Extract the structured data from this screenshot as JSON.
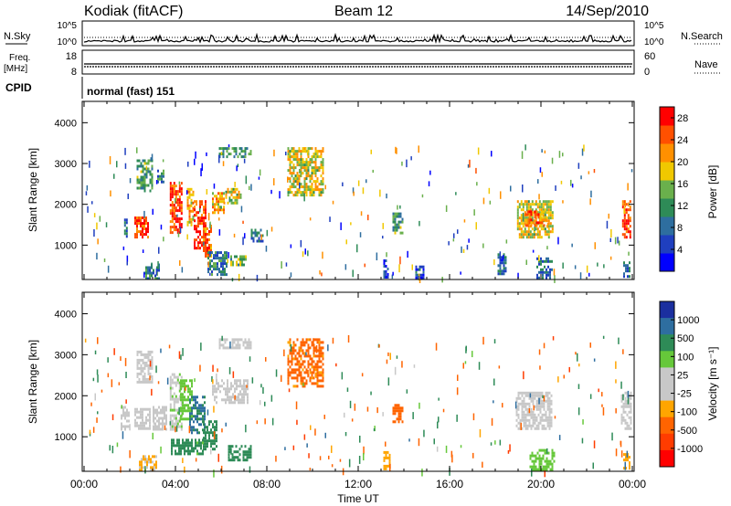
{
  "header": {
    "station": "Kodiak (fitACF)",
    "beam": "Beam 12",
    "date": "14/Sep/2010"
  },
  "params": {
    "nsky_label": "N.Sky",
    "nsearch_label": "N.Search",
    "nsky_ticks": [
      "10^5",
      "10^0"
    ],
    "nsearch_ticks": [
      "10^5",
      "10^0"
    ],
    "freq_label": "Freq.",
    "freq_unit": "[MHz]",
    "freq_ticks": [
      "18",
      "8"
    ],
    "nave_label": "Nave",
    "nave_ticks": [
      "60",
      "0"
    ],
    "cpid_label": "CPID",
    "cpid_text": "normal (fast) 151"
  },
  "colors": {
    "power": [
      "#0000ff",
      "#1f3fbf",
      "#2e6e9f",
      "#2e8b57",
      "#6ab04c",
      "#f0c800",
      "#ff9000",
      "#ff5000",
      "#ff0000"
    ],
    "velocity": [
      "#1b2f9f",
      "#2e6ea0",
      "#2e8b57",
      "#66c83a",
      "#c8c8c8",
      "#c8c8c8",
      "#ffa500",
      "#ff6400",
      "#ff3c00",
      "#ff0000"
    ]
  },
  "chart_data": [
    {
      "type": "heatmap",
      "name": "power",
      "ylabel": "Slant Range [km]",
      "yticks": [
        "1000",
        "2000",
        "3000",
        "4000"
      ],
      "ylim": [
        180,
        4500
      ],
      "colorbar_label": "Power [dB]",
      "colorbar_ticks": [
        "4",
        "8",
        "12",
        "16",
        "20",
        "24",
        "28"
      ],
      "colorbar_range": [
        0,
        30
      ],
      "patches": [
        {
          "t": [
            1.75,
            1.85
          ],
          "r": [
            1200,
            1650
          ],
          "v": 8
        },
        {
          "t": [
            2.2,
            2.8
          ],
          "r": [
            1200,
            1700
          ],
          "v": 26
        },
        {
          "t": [
            2.3,
            3.0
          ],
          "r": [
            2300,
            3100
          ],
          "v": 12
        },
        {
          "t": [
            2.6,
            3.3
          ],
          "r": [
            200,
            550
          ],
          "v": 10
        },
        {
          "t": [
            3.2,
            3.5
          ],
          "r": [
            2550,
            2850
          ],
          "v": 10
        },
        {
          "t": [
            3.75,
            4.25
          ],
          "r": [
            1300,
            2550
          ],
          "v": 26
        },
        {
          "t": [
            4.5,
            4.8
          ],
          "r": [
            1500,
            2400
          ],
          "v": 20
        },
        {
          "t": [
            4.8,
            5.3
          ],
          "r": [
            900,
            2100
          ],
          "v": 27
        },
        {
          "t": [
            5.2,
            5.6
          ],
          "r": [
            700,
            1500
          ],
          "v": 24
        },
        {
          "t": [
            5.6,
            6.1
          ],
          "r": [
            1800,
            2300
          ],
          "v": 20
        },
        {
          "t": [
            6.1,
            6.9
          ],
          "r": [
            2000,
            2400
          ],
          "v": 18
        },
        {
          "t": [
            5.4,
            6.2
          ],
          "r": [
            300,
            850
          ],
          "v": 10
        },
        {
          "t": [
            6.4,
            7.2
          ],
          "r": [
            500,
            750
          ],
          "v": 14
        },
        {
          "t": [
            5.9,
            7.3
          ],
          "r": [
            3150,
            3400
          ],
          "v": 12
        },
        {
          "t": [
            7.3,
            7.8
          ],
          "r": [
            1100,
            1400
          ],
          "v": 8
        },
        {
          "t": [
            8.9,
            10.5
          ],
          "r": [
            2200,
            3400
          ],
          "v": 18
        },
        {
          "t": [
            13.1,
            13.3
          ],
          "r": [
            200,
            650
          ],
          "v": 6
        },
        {
          "t": [
            13.5,
            13.9
          ],
          "r": [
            1300,
            1800
          ],
          "v": 12
        },
        {
          "t": [
            14.5,
            14.9
          ],
          "r": [
            200,
            500
          ],
          "v": 6
        },
        {
          "t": [
            18.1,
            18.5
          ],
          "r": [
            300,
            800
          ],
          "v": 8
        },
        {
          "t": [
            18.95,
            20.5
          ],
          "r": [
            1200,
            2100
          ],
          "v": 18
        },
        {
          "t": [
            19.3,
            20.2
          ],
          "r": [
            1450,
            1850
          ],
          "v": 24
        },
        {
          "t": [
            19.8,
            20.5
          ],
          "r": [
            200,
            700
          ],
          "v": 8
        },
        {
          "t": [
            23.55,
            23.95
          ],
          "r": [
            1200,
            2100
          ],
          "v": 26
        },
        {
          "t": [
            23.6,
            23.9
          ],
          "r": [
            200,
            600
          ],
          "v": 8
        }
      ]
    },
    {
      "type": "heatmap",
      "name": "velocity",
      "ylabel": "Slant Range [km]",
      "xlabel": "Time UT",
      "yticks": [
        "1000",
        "2000",
        "3000",
        "4000"
      ],
      "ylim": [
        180,
        4500
      ],
      "xticks": [
        "00:00",
        "04:00",
        "08:00",
        "12:00",
        "16:00",
        "20:00",
        "00:00"
      ],
      "xlim": [
        0,
        24
      ],
      "colorbar_label": "Velocity [m s⁻¹]",
      "colorbar_ticks": [
        "1000",
        "500",
        "100",
        "25",
        "-25",
        "-100",
        "-500",
        "-1000"
      ],
      "patches": [
        {
          "t": [
            1.6,
            2.0
          ],
          "r": [
            1150,
            1750
          ],
          "v": 0
        },
        {
          "t": [
            2.2,
            2.9
          ],
          "r": [
            1200,
            1700
          ],
          "v": 0
        },
        {
          "t": [
            2.3,
            3.0
          ],
          "r": [
            2300,
            3100
          ],
          "v": 15
        },
        {
          "t": [
            2.4,
            3.2
          ],
          "r": [
            200,
            550
          ],
          "v": -30
        },
        {
          "t": [
            3.0,
            3.6
          ],
          "r": [
            1200,
            1750
          ],
          "v": 0
        },
        {
          "t": [
            3.75,
            4.25
          ],
          "r": [
            1200,
            2550
          ],
          "v": 20
        },
        {
          "t": [
            4.2,
            4.7
          ],
          "r": [
            1400,
            2400
          ],
          "v": 60
        },
        {
          "t": [
            4.6,
            5.3
          ],
          "r": [
            1100,
            2000
          ],
          "v": 600
        },
        {
          "t": [
            5.2,
            5.8
          ],
          "r": [
            700,
            1400
          ],
          "v": 200
        },
        {
          "t": [
            3.8,
            5.2
          ],
          "r": [
            600,
            950
          ],
          "v": 150
        },
        {
          "t": [
            5.6,
            7.2
          ],
          "r": [
            1800,
            2400
          ],
          "v": 0
        },
        {
          "t": [
            6.3,
            7.3
          ],
          "r": [
            450,
            800
          ],
          "v": 200
        },
        {
          "t": [
            5.9,
            7.3
          ],
          "r": [
            3150,
            3400
          ],
          "v": 0
        },
        {
          "t": [
            8.9,
            10.5
          ],
          "r": [
            2200,
            3400
          ],
          "v": -150
        },
        {
          "t": [
            13.1,
            13.4
          ],
          "r": [
            200,
            650
          ],
          "v": -50
        },
        {
          "t": [
            13.5,
            13.9
          ],
          "r": [
            1350,
            1800
          ],
          "v": -300
        },
        {
          "t": [
            18.9,
            20.5
          ],
          "r": [
            1200,
            2100
          ],
          "v": 0
        },
        {
          "t": [
            19.5,
            20.6
          ],
          "r": [
            200,
            700
          ],
          "v": 60
        },
        {
          "t": [
            23.5,
            23.95
          ],
          "r": [
            1200,
            2100
          ],
          "v": 0
        },
        {
          "t": [
            23.6,
            23.9
          ],
          "r": [
            200,
            600
          ],
          "v": -50
        }
      ]
    }
  ]
}
